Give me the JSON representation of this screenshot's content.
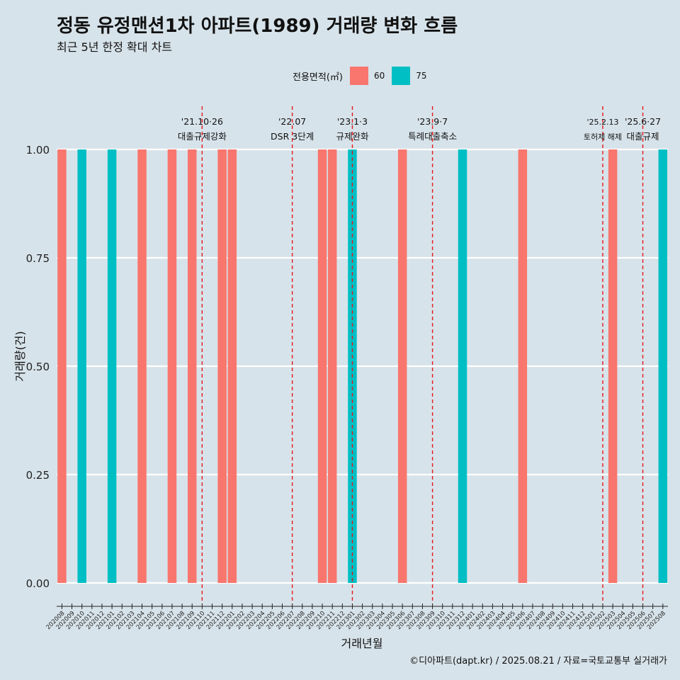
{
  "title": "정동 유정맨션1차 아파트(1989) 거래량 변화 흐름",
  "subtitle": "최근 5년 한정 확대 차트",
  "caption": "©디아파트(dapt.kr) / 2025.08.21 / 자료=국토교통부 실거래가",
  "legend": {
    "title": "전용면적(㎡)",
    "items": [
      {
        "label": "60",
        "color": "#f8766d"
      },
      {
        "label": "75",
        "color": "#00bfc4"
      }
    ]
  },
  "chart_data": {
    "type": "bar",
    "xlabel": "거래년월",
    "ylabel": "거래량(건)",
    "ylim": [
      0,
      1
    ],
    "yticks": [
      "0.00",
      "0.25",
      "0.50",
      "0.75",
      "1.00"
    ],
    "categories": [
      "202008",
      "202009",
      "202010",
      "202011",
      "202012",
      "202101",
      "202102",
      "202103",
      "202104",
      "202105",
      "202106",
      "202107",
      "202108",
      "202109",
      "202110",
      "202111",
      "202112",
      "202201",
      "202202",
      "202203",
      "202204",
      "202205",
      "202206",
      "202207",
      "202208",
      "202209",
      "202210",
      "202211",
      "202212",
      "202301",
      "202302",
      "202303",
      "202304",
      "202305",
      "202306",
      "202307",
      "202308",
      "202309",
      "202310",
      "202311",
      "202312",
      "202401",
      "202402",
      "202403",
      "202404",
      "202405",
      "202406",
      "202407",
      "202408",
      "202409",
      "202410",
      "202411",
      "202412",
      "202501",
      "202502",
      "202503",
      "202504",
      "202505",
      "202506",
      "202507",
      "202508"
    ],
    "series": [
      {
        "name": "60",
        "color": "#f8766d",
        "values": [
          1,
          0,
          0,
          0,
          0,
          0,
          0,
          0,
          1,
          0,
          0,
          1,
          0,
          1,
          0,
          0,
          1,
          1,
          0,
          0,
          0,
          0,
          0,
          0,
          0,
          0,
          1,
          1,
          0,
          0,
          0,
          0,
          0,
          0,
          1,
          0,
          0,
          0,
          0,
          0,
          0,
          0,
          0,
          0,
          0,
          0,
          1,
          0,
          0,
          0,
          0,
          0,
          0,
          0,
          0,
          1,
          0,
          0,
          0,
          0,
          0
        ]
      },
      {
        "name": "75",
        "color": "#00bfc4",
        "values": [
          0,
          0,
          1,
          0,
          0,
          1,
          0,
          0,
          0,
          0,
          0,
          0,
          0,
          0,
          0,
          0,
          0,
          0,
          0,
          0,
          0,
          0,
          0,
          0,
          0,
          0,
          0,
          0,
          0,
          1,
          0,
          0,
          0,
          0,
          0,
          0,
          0,
          0,
          0,
          0,
          1,
          0,
          0,
          0,
          0,
          0,
          0,
          0,
          0,
          0,
          0,
          0,
          0,
          0,
          0,
          0,
          0,
          0,
          0,
          0,
          1
        ]
      }
    ],
    "annotations": [
      {
        "category": "202110",
        "date": "'21.10·26",
        "label": "대출규제강화",
        "small": false
      },
      {
        "category": "202207",
        "date": "'22.07",
        "label": "DSR 3단계",
        "small": false
      },
      {
        "category": "202301",
        "date": "'23.1·3",
        "label": "규제완화",
        "small": false
      },
      {
        "category": "202309",
        "date": "'23.9·7",
        "label": "특례대출축소",
        "small": false
      },
      {
        "category": "202502",
        "date": "'25.2.13",
        "label": "토허제 해제",
        "small": true
      },
      {
        "category": "202506",
        "date": "'25.6·27",
        "label": "대출규제",
        "small": false
      }
    ],
    "annotation_line_color": "#e8161c",
    "grid": true,
    "legend_position": "top"
  }
}
